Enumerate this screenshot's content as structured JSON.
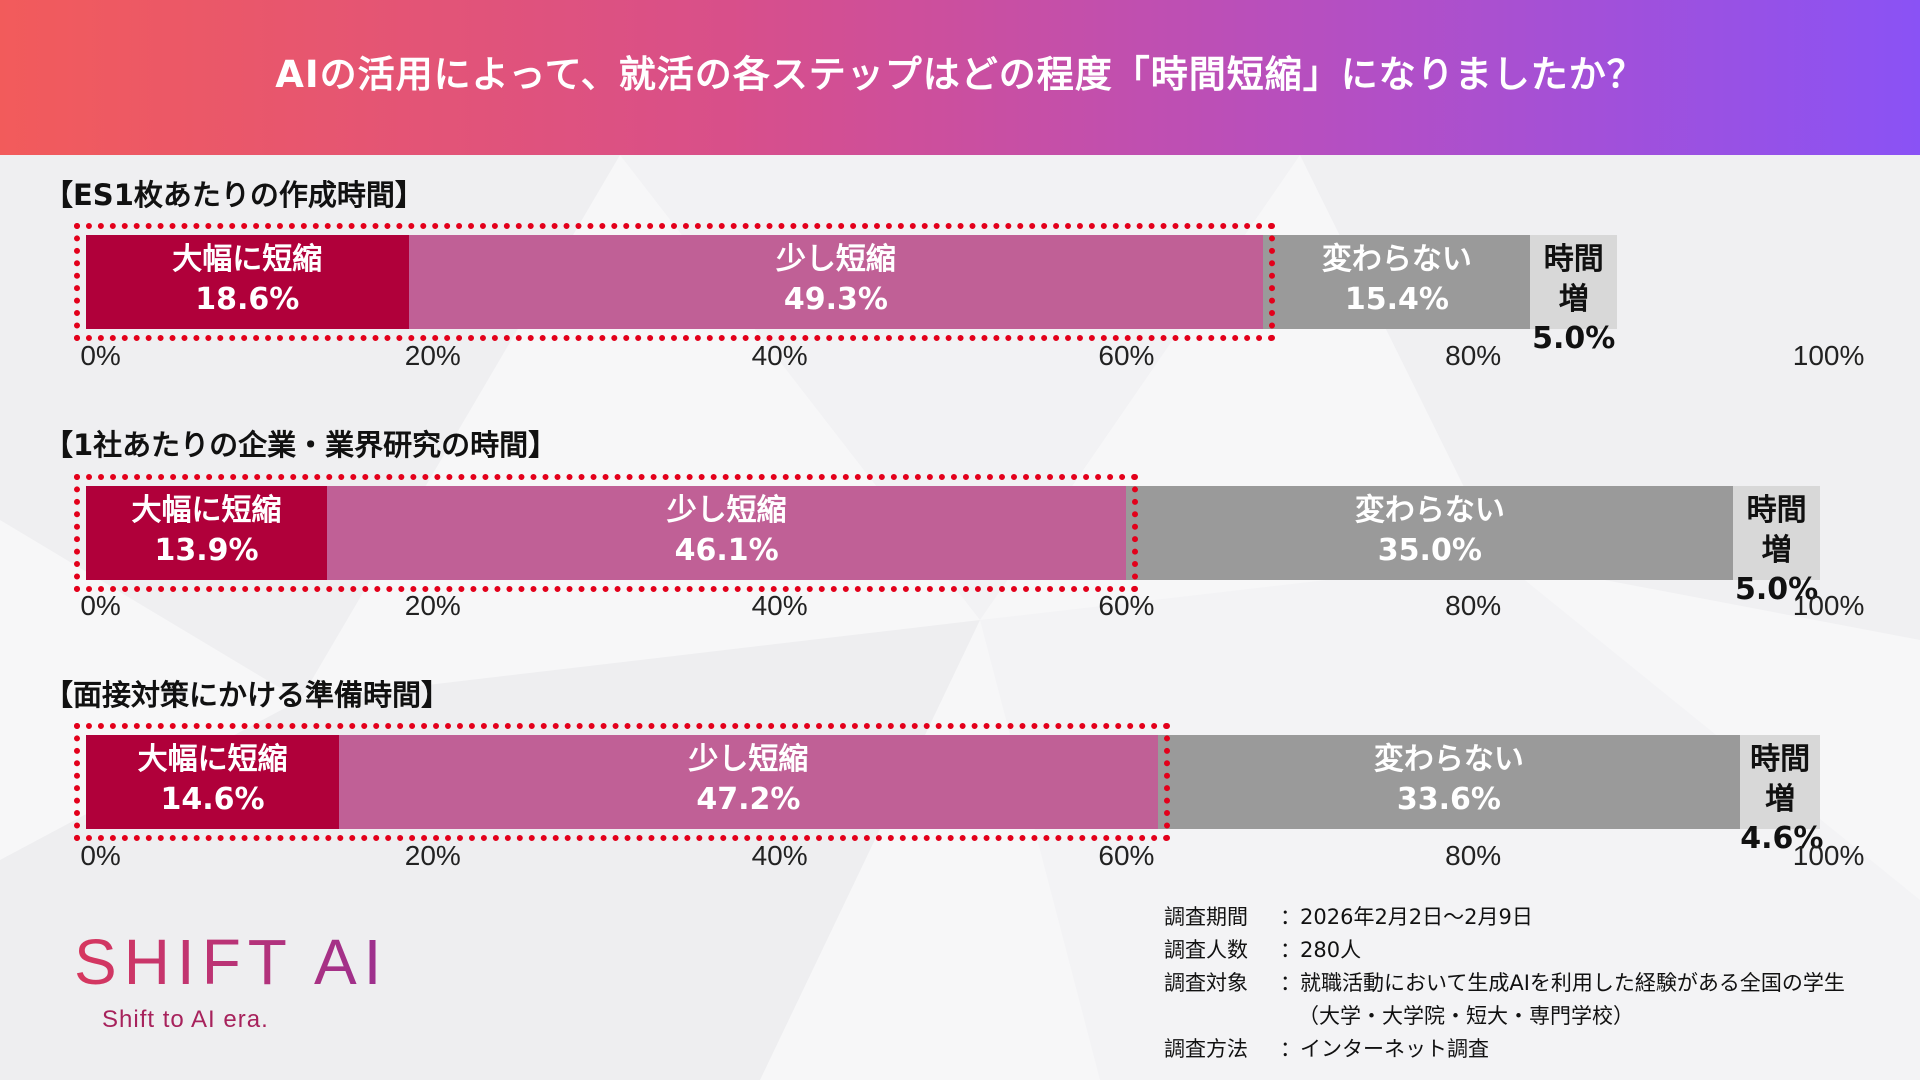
{
  "header": {
    "title": "AIの活用によって、就活の各ステップはどの程度「時間短縮」になりましたか？"
  },
  "chart_data": [
    {
      "type": "bar",
      "orientation": "horizontal-stacked",
      "title": "【ES1枚あたりの作成時間】",
      "series": [
        {
          "name": "大幅に短縮",
          "value": 18.6,
          "label": "18.6%"
        },
        {
          "name": "少し短縮",
          "value": 49.3,
          "label": "49.3%"
        },
        {
          "name": "変わらない",
          "value": 15.4,
          "label": "15.4%"
        },
        {
          "name": "時間増",
          "value": 5.0,
          "label": "5.0%"
        }
      ],
      "xlim": [
        0,
        100
      ],
      "xticks": [
        "0%",
        "20%",
        "40%",
        "60%",
        "80%",
        "100%"
      ],
      "highlight": "大幅に短縮 + 少し短縮"
    },
    {
      "type": "bar",
      "orientation": "horizontal-stacked",
      "title": "【1社あたりの企業・業界研究の時間】",
      "series": [
        {
          "name": "大幅に短縮",
          "value": 13.9,
          "label": "13.9%"
        },
        {
          "name": "少し短縮",
          "value": 46.1,
          "label": "46.1%"
        },
        {
          "name": "変わらない",
          "value": 35.0,
          "label": "35.0%"
        },
        {
          "name": "時間増",
          "value": 5.0,
          "label": "5.0%"
        }
      ],
      "xlim": [
        0,
        100
      ],
      "xticks": [
        "0%",
        "20%",
        "40%",
        "60%",
        "80%",
        "100%"
      ],
      "highlight": "大幅に短縮 + 少し短縮"
    },
    {
      "type": "bar",
      "orientation": "horizontal-stacked",
      "title": "【面接対策にかける準備時間】",
      "series": [
        {
          "name": "大幅に短縮",
          "value": 14.6,
          "label": "14.6%"
        },
        {
          "name": "少し短縮",
          "value": 47.2,
          "label": "47.2%"
        },
        {
          "name": "変わらない",
          "value": 33.6,
          "label": "33.6%"
        },
        {
          "name": "時間増",
          "value": 4.6,
          "label": "4.6%"
        }
      ],
      "xlim": [
        0,
        100
      ],
      "xticks": [
        "0%",
        "20%",
        "40%",
        "60%",
        "80%",
        "100%"
      ],
      "highlight": "大幅に短縮 + 少し短縮"
    }
  ],
  "colors": {
    "大幅に短縮": "#b0003a",
    "少し短縮": "#c06096",
    "変わらない": "#9a9a9a",
    "時間増": "#d8d8d8",
    "highlight": "#e3001b"
  },
  "logo": {
    "main": "SHIFT AI",
    "sub": "Shift to AI era."
  },
  "notes": [
    {
      "key": "調査期間",
      "value": "2026年2月2日〜2月9日"
    },
    {
      "key": "調査人数",
      "value": "280人"
    },
    {
      "key": "調査対象",
      "value": "就職活動において生成AIを利用した経験がある全国の学生"
    },
    {
      "key": "",
      "value": "（大学・大学院・短大・専門学校）"
    },
    {
      "key": "調査方法",
      "value": "インターネット調査"
    }
  ]
}
